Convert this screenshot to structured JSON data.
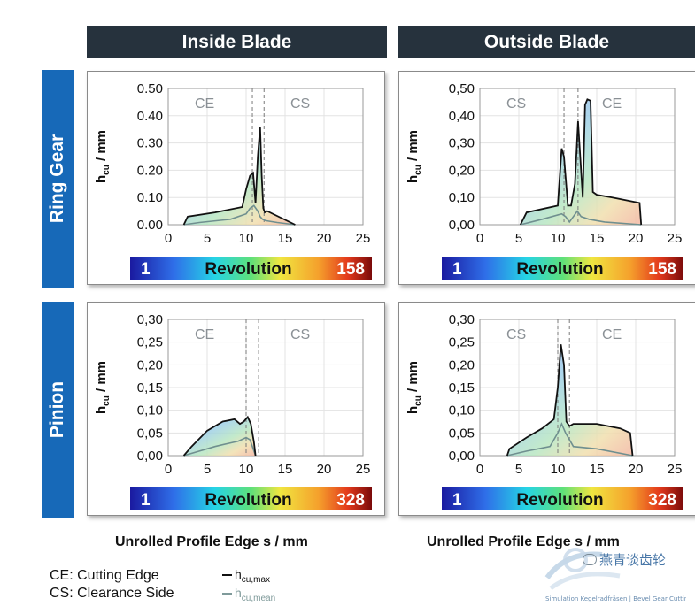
{
  "columns": [
    "Inside Blade",
    "Outside Blade"
  ],
  "rows": [
    "Ring Gear",
    "Pinion"
  ],
  "x_axis_label": "Unrolled Profile Edge s / mm",
  "legend": {
    "ce": "CE: Cutting Edge",
    "cs": "CS: Clearance Side",
    "hmax_main": "h",
    "hmax_sub": "cu,max",
    "hmean_main": "h",
    "hmean_sub": "cu,mean"
  },
  "watermark": {
    "text": "燕青谈齿轮",
    "sub": "Simulation Kegelradfräsen | Bevel Gear Cutting"
  },
  "colors": {
    "header_dark": "#26323d",
    "row_blue": "#1769b8",
    "max_line": "#111111",
    "mean_line": "#6f8f8f"
  },
  "chart_data": [
    {
      "id": "ring-inside",
      "type": "area",
      "column": "Inside Blade",
      "row": "Ring Gear",
      "ylabel_main": "h",
      "ylabel_sub": "cu",
      "ylabel_unit": " / mm",
      "xlim": [
        0,
        25
      ],
      "xticks": [
        0,
        5,
        10,
        15,
        20,
        25
      ],
      "ylim": [
        0,
        0.5
      ],
      "yticks": [
        "0.00",
        "0.10",
        "0.20",
        "0.30",
        "0.40",
        "0.50"
      ],
      "region_left": "CE",
      "region_right": "CS",
      "dashed_x": [
        10.8,
        12.3
      ],
      "colorbar": {
        "min": "1",
        "label": "Revolution",
        "max": "158"
      },
      "series": [
        {
          "key": "max",
          "x": [
            2,
            2.5,
            6,
            9.5,
            10,
            10.5,
            10.9,
            11.2,
            11.5,
            11.8,
            12.0,
            12.2,
            12.4,
            12.7,
            16.3
          ],
          "y": [
            0,
            0.03,
            0.045,
            0.065,
            0.13,
            0.18,
            0.19,
            0.08,
            0.25,
            0.36,
            0.18,
            0.06,
            0.045,
            0.05,
            0
          ]
        },
        {
          "key": "mean",
          "x": [
            2,
            4,
            8,
            10,
            10.5,
            11,
            11.5,
            11.8,
            12.1,
            12.5,
            14,
            16.3
          ],
          "y": [
            0,
            0.008,
            0.02,
            0.04,
            0.06,
            0.07,
            0.05,
            0.03,
            0.02,
            0.015,
            0.008,
            0
          ]
        }
      ]
    },
    {
      "id": "ring-outside",
      "type": "area",
      "column": "Outside Blade",
      "row": "Ring Gear",
      "ylabel_main": "h",
      "ylabel_sub": "cu",
      "ylabel_unit": " / mm",
      "xlim": [
        0,
        25
      ],
      "xticks": [
        0,
        5,
        10,
        15,
        20,
        25
      ],
      "ylim": [
        0,
        0.5
      ],
      "yticks": [
        "0,00",
        "0,10",
        "0,20",
        "0,30",
        "0,40",
        "0,50"
      ],
      "region_left": "CS",
      "region_right": "CE",
      "dashed_x": [
        10.8,
        12.6
      ],
      "colorbar": {
        "min": "1",
        "label": "Revolution",
        "max": "158"
      },
      "series": [
        {
          "key": "max",
          "x": [
            5.2,
            6,
            10,
            10.5,
            10.8,
            11.3,
            11.7,
            12.2,
            12.6,
            13.2,
            13.5,
            13.8,
            14.2,
            14.5,
            15,
            17,
            20.5,
            20.7
          ],
          "y": [
            0,
            0.045,
            0.07,
            0.28,
            0.25,
            0.07,
            0.07,
            0.15,
            0.38,
            0.1,
            0.44,
            0.46,
            0.455,
            0.12,
            0.11,
            0.1,
            0.08,
            0
          ]
        },
        {
          "key": "mean",
          "x": [
            5.2,
            8,
            10.5,
            11,
            11.5,
            12,
            12.5,
            13,
            14,
            16,
            20.7
          ],
          "y": [
            0,
            0.02,
            0.04,
            0.03,
            0.01,
            0.03,
            0.05,
            0.03,
            0.02,
            0.01,
            0
          ]
        }
      ]
    },
    {
      "id": "pinion-inside",
      "type": "area",
      "column": "Inside Blade",
      "row": "Pinion",
      "ylabel_main": "h",
      "ylabel_sub": "cu",
      "ylabel_unit": " / mm",
      "xlim": [
        0,
        25
      ],
      "xticks": [
        0,
        5,
        10,
        15,
        20,
        25
      ],
      "ylim": [
        0,
        0.3
      ],
      "yticks": [
        "0,00",
        "0,05",
        "0,10",
        "0,15",
        "0,20",
        "0,25",
        "0,30"
      ],
      "region_left": "CE",
      "region_right": "CS",
      "dashed_x": [
        10.0,
        11.6
      ],
      "colorbar": {
        "min": "1",
        "label": "Revolution",
        "max": "328"
      },
      "series": [
        {
          "key": "max",
          "x": [
            2,
            3,
            5,
            7,
            8.5,
            9.2,
            9.7,
            10.2,
            10.6,
            11.0,
            11.2
          ],
          "y": [
            0,
            0.02,
            0.055,
            0.075,
            0.08,
            0.07,
            0.075,
            0.085,
            0.07,
            0.03,
            0
          ]
        },
        {
          "key": "mean",
          "x": [
            2,
            4,
            6,
            8,
            9,
            10,
            10.5,
            11.2
          ],
          "y": [
            0,
            0.01,
            0.02,
            0.028,
            0.032,
            0.04,
            0.035,
            0
          ]
        }
      ]
    },
    {
      "id": "pinion-outside",
      "type": "area",
      "column": "Outside Blade",
      "row": "Pinion",
      "ylabel_main": "h",
      "ylabel_sub": "cu",
      "ylabel_unit": " / mm",
      "xlim": [
        0,
        25
      ],
      "xticks": [
        0,
        5,
        10,
        15,
        20,
        25
      ],
      "ylim": [
        0,
        0.3
      ],
      "yticks": [
        "0,00",
        "0,05",
        "0,10",
        "0,15",
        "0,20",
        "0,25",
        "0,30"
      ],
      "region_left": "CS",
      "region_right": "CE",
      "dashed_x": [
        10.0,
        11.5
      ],
      "colorbar": {
        "min": "1",
        "label": "Revolution",
        "max": "328"
      },
      "series": [
        {
          "key": "max",
          "x": [
            3.5,
            3.8,
            6,
            8,
            9.5,
            10.0,
            10.4,
            10.8,
            11.1,
            11.5,
            12,
            15,
            18,
            19.3,
            19.6
          ],
          "y": [
            0,
            0.015,
            0.04,
            0.06,
            0.08,
            0.15,
            0.245,
            0.2,
            0.075,
            0.065,
            0.07,
            0.07,
            0.06,
            0.05,
            0
          ]
        },
        {
          "key": "mean",
          "x": [
            3.5,
            6,
            9,
            10,
            10.5,
            11,
            12,
            15,
            19.6
          ],
          "y": [
            0,
            0.01,
            0.02,
            0.05,
            0.07,
            0.05,
            0.02,
            0.015,
            0
          ]
        }
      ]
    }
  ]
}
